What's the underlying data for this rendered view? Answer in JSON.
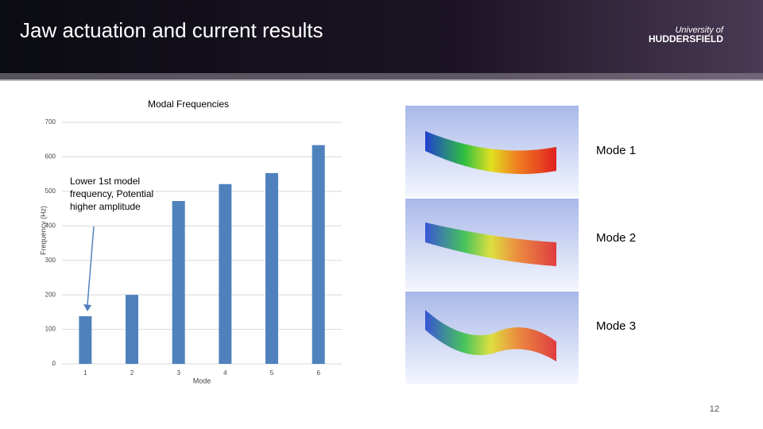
{
  "header": {
    "title": "Jaw actuation and current results",
    "logo": [
      "University of",
      "HUDDERSFIELD"
    ]
  },
  "chart_data": {
    "type": "bar",
    "title": "Modal Frequencies",
    "x_label": "Mode",
    "y_label": "Frequency (Hz)",
    "categories": [
      "1",
      "2",
      "3",
      "4",
      "5",
      "6"
    ],
    "values": [
      138,
      200,
      472,
      521,
      553,
      634
    ],
    "color": "#4f81bd",
    "ylim": [
      0,
      700
    ],
    "yticks": [
      0,
      100,
      200,
      300,
      400,
      500,
      600,
      700
    ],
    "grid": true,
    "annotation": "Lower 1st model frequency, Potential higher amplitude"
  },
  "mode_labels": [
    "Mode 1",
    "Mode 2",
    "Mode 3"
  ],
  "page_number": "12"
}
